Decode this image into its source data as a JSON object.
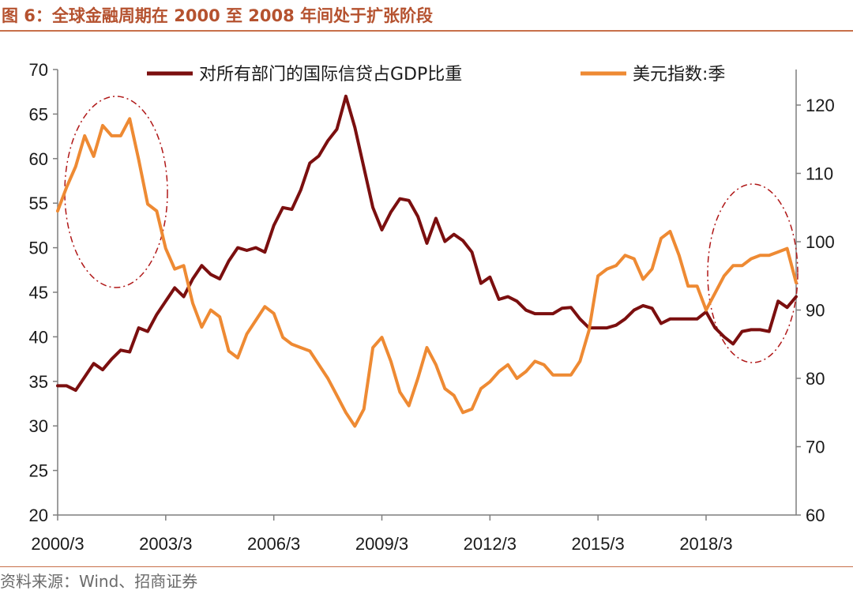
{
  "header": {
    "title": "图 6：全球金融周期在 2000 至 2008 年间处于扩张阶段"
  },
  "footer": {
    "source": "资料来源：Wind、招商证券"
  },
  "colors": {
    "series_credit": "#7b0f0f",
    "series_usd": "#ee8a33",
    "ellipse": "#b01818",
    "accent": "#b5522f"
  },
  "chart_data": {
    "type": "line",
    "legend_placement": "top",
    "grid": false,
    "x_tick_labels": [
      "2000/3",
      "2003/3",
      "2006/3",
      "2009/3",
      "2012/3",
      "2015/3",
      "2018/3"
    ],
    "y_left": {
      "ylim": [
        20,
        70
      ],
      "ticks": [
        20,
        25,
        30,
        35,
        40,
        45,
        50,
        55,
        60,
        65,
        70
      ]
    },
    "y_right": {
      "ylim": [
        60,
        125
      ],
      "ticks": [
        60,
        70,
        80,
        90,
        100,
        110,
        120
      ]
    },
    "x_quarter_start": "2000/3",
    "series": [
      {
        "name": "对所有部门的国际信贷占GDP比重",
        "axis": "left",
        "values": [
          34.5,
          34.5,
          34.0,
          35.5,
          37.0,
          36.3,
          37.5,
          38.5,
          38.3,
          41.0,
          40.6,
          42.5,
          44.0,
          45.5,
          44.5,
          46.5,
          48.0,
          47.0,
          46.5,
          48.5,
          50.0,
          49.7,
          50.0,
          49.5,
          52.5,
          54.5,
          54.3,
          56.5,
          59.5,
          60.3,
          62.0,
          63.3,
          67.0,
          63.5,
          59.0,
          54.5,
          52.0,
          54.0,
          55.5,
          55.3,
          53.5,
          50.5,
          53.3,
          50.7,
          51.5,
          50.8,
          49.5,
          46.0,
          46.7,
          44.2,
          44.5,
          44.0,
          43.0,
          42.6,
          42.6,
          42.6,
          43.2,
          43.3,
          42.0,
          41.0,
          41.0,
          41.0,
          41.3,
          42.0,
          43.0,
          43.5,
          43.2,
          41.5,
          42.0,
          42.0,
          42.0,
          42.0,
          42.8,
          41.0,
          40.0,
          39.2,
          40.6,
          40.8,
          40.8,
          40.6,
          44.0,
          43.3,
          44.5
        ]
      },
      {
        "name": "美元指数:季",
        "axis": "right",
        "values": [
          104.5,
          108.0,
          111.0,
          115.5,
          112.5,
          117.0,
          115.5,
          115.5,
          118.0,
          112.0,
          105.5,
          104.5,
          99.0,
          96.0,
          96.5,
          91.0,
          87.5,
          90.0,
          89.0,
          84.0,
          83.0,
          86.5,
          88.5,
          90.5,
          89.5,
          86.0,
          85.0,
          84.5,
          84.0,
          82.0,
          80.0,
          77.5,
          75.0,
          73.0,
          75.5,
          84.5,
          86.0,
          82.5,
          78.0,
          76.0,
          80.0,
          84.5,
          82.0,
          78.5,
          77.5,
          75.0,
          75.5,
          78.5,
          79.5,
          81.0,
          82.0,
          80.0,
          81.0,
          82.5,
          82.0,
          80.5,
          80.5,
          80.5,
          82.5,
          87.0,
          95.0,
          96.0,
          96.5,
          98.0,
          97.5,
          94.5,
          96.0,
          100.5,
          101.5,
          98.0,
          93.5,
          93.5,
          90.0,
          92.5,
          95.0,
          96.5,
          96.5,
          97.5,
          98.0,
          98.0,
          98.5,
          99.0,
          94.0
        ]
      }
    ]
  }
}
